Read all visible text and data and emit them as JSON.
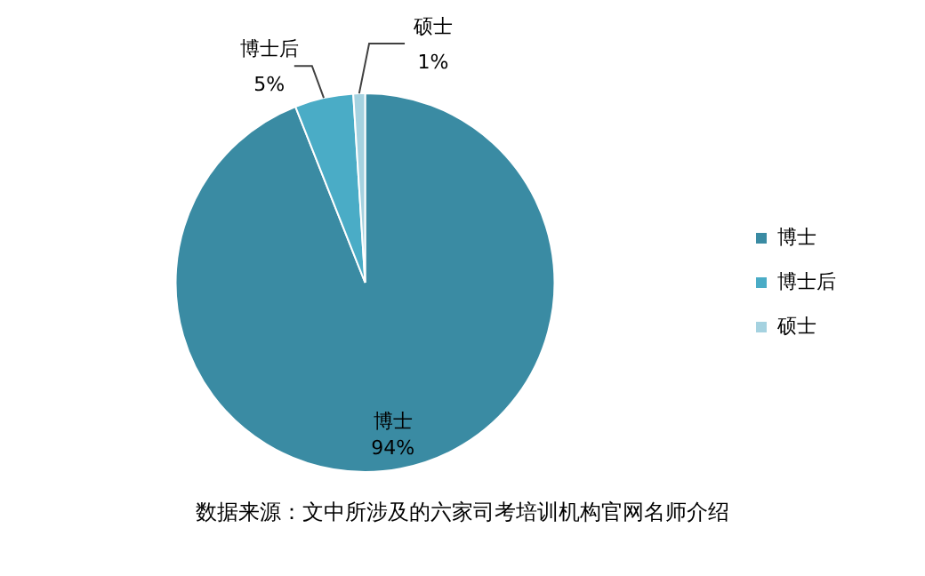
{
  "chart_data": {
    "type": "pie",
    "categories": [
      "博士",
      "博士后",
      "硕士"
    ],
    "values": [
      94,
      5,
      1
    ],
    "value_labels": [
      "94%",
      "5%",
      "1%"
    ],
    "colors": [
      "#3a8ba3",
      "#4aacc6",
      "#a5d2e0"
    ],
    "legend": "right",
    "annotations": [
      "数据来源：文中所涉及的六家司考培训机构官网名师介绍"
    ]
  }
}
